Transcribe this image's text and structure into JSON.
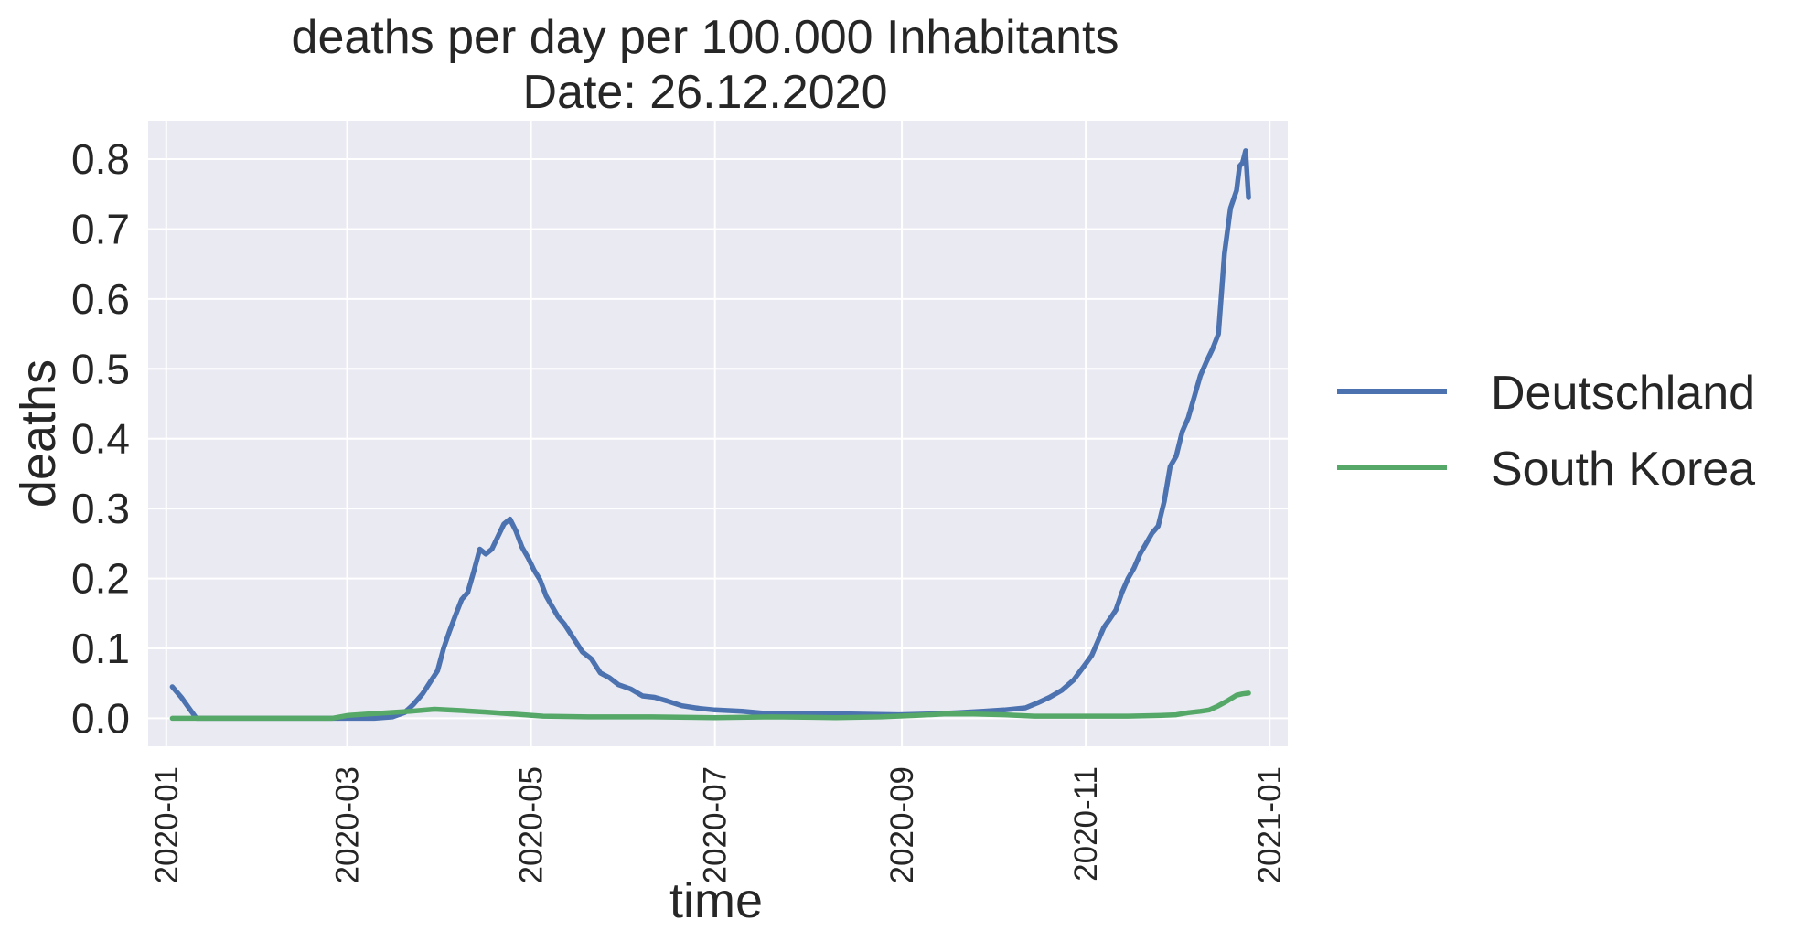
{
  "chart_data": {
    "type": "line",
    "title": "deaths per day per 100.000 Inhabitants",
    "subtitle": "Date: 26.12.2020",
    "xlabel": "time",
    "ylabel": "deaths",
    "ylim": [
      -0.04,
      0.855
    ],
    "xlim": [
      "2019-12-26",
      "2021-01-07"
    ],
    "yticks": [
      0.0,
      0.1,
      0.2,
      0.3,
      0.4,
      0.5,
      0.6,
      0.7,
      0.8
    ],
    "ytick_labels": [
      "0.0",
      "0.1",
      "0.2",
      "0.3",
      "0.4",
      "0.5",
      "0.6",
      "0.7",
      "0.8"
    ],
    "xticks": [
      "2020-01-01",
      "2020-03-01",
      "2020-05-01",
      "2020-07-01",
      "2020-09-01",
      "2020-11-01",
      "2021-01-01"
    ],
    "xtick_labels": [
      "2020-01",
      "2020-03",
      "2020-05",
      "2020-07",
      "2020-09",
      "2020-11",
      "2021-01"
    ],
    "grid": true,
    "legend_position": "right",
    "background": "#EAEAF2",
    "series": [
      {
        "name": "Deutschland",
        "color": "#4C72B0",
        "points": [
          [
            "2020-01-03",
            0.045
          ],
          [
            "2020-01-06",
            0.03
          ],
          [
            "2020-01-09",
            0.012
          ],
          [
            "2020-01-11",
            0.0
          ],
          [
            "2020-02-01",
            0.0
          ],
          [
            "2020-03-01",
            0.0
          ],
          [
            "2020-03-10",
            0.0
          ],
          [
            "2020-03-16",
            0.002
          ],
          [
            "2020-03-20",
            0.008
          ],
          [
            "2020-03-23",
            0.02
          ],
          [
            "2020-03-26",
            0.035
          ],
          [
            "2020-03-29",
            0.055
          ],
          [
            "2020-03-31",
            0.068
          ],
          [
            "2020-04-02",
            0.1
          ],
          [
            "2020-04-04",
            0.125
          ],
          [
            "2020-04-06",
            0.148
          ],
          [
            "2020-04-08",
            0.17
          ],
          [
            "2020-04-10",
            0.18
          ],
          [
            "2020-04-12",
            0.21
          ],
          [
            "2020-04-14",
            0.242
          ],
          [
            "2020-04-16",
            0.235
          ],
          [
            "2020-04-18",
            0.242
          ],
          [
            "2020-04-20",
            0.26
          ],
          [
            "2020-04-22",
            0.278
          ],
          [
            "2020-04-24",
            0.285
          ],
          [
            "2020-04-26",
            0.268
          ],
          [
            "2020-04-28",
            0.245
          ],
          [
            "2020-04-30",
            0.23
          ],
          [
            "2020-05-02",
            0.212
          ],
          [
            "2020-05-04",
            0.198
          ],
          [
            "2020-05-06",
            0.175
          ],
          [
            "2020-05-08",
            0.16
          ],
          [
            "2020-05-10",
            0.145
          ],
          [
            "2020-05-12",
            0.135
          ],
          [
            "2020-05-15",
            0.115
          ],
          [
            "2020-05-18",
            0.095
          ],
          [
            "2020-05-21",
            0.085
          ],
          [
            "2020-05-24",
            0.065
          ],
          [
            "2020-05-27",
            0.058
          ],
          [
            "2020-05-30",
            0.048
          ],
          [
            "2020-06-03",
            0.042
          ],
          [
            "2020-06-07",
            0.032
          ],
          [
            "2020-06-11",
            0.03
          ],
          [
            "2020-06-15",
            0.025
          ],
          [
            "2020-06-20",
            0.018
          ],
          [
            "2020-06-26",
            0.014
          ],
          [
            "2020-07-01",
            0.012
          ],
          [
            "2020-07-10",
            0.01
          ],
          [
            "2020-07-20",
            0.006
          ],
          [
            "2020-08-01",
            0.006
          ],
          [
            "2020-08-15",
            0.006
          ],
          [
            "2020-08-31",
            0.005
          ],
          [
            "2020-09-10",
            0.006
          ],
          [
            "2020-09-20",
            0.008
          ],
          [
            "2020-09-28",
            0.01
          ],
          [
            "2020-10-05",
            0.012
          ],
          [
            "2020-10-12",
            0.015
          ],
          [
            "2020-10-16",
            0.022
          ],
          [
            "2020-10-20",
            0.03
          ],
          [
            "2020-10-24",
            0.04
          ],
          [
            "2020-10-28",
            0.055
          ],
          [
            "2020-11-01",
            0.078
          ],
          [
            "2020-11-03",
            0.09
          ],
          [
            "2020-11-05",
            0.11
          ],
          [
            "2020-11-07",
            0.13
          ],
          [
            "2020-11-09",
            0.142
          ],
          [
            "2020-11-11",
            0.155
          ],
          [
            "2020-11-13",
            0.18
          ],
          [
            "2020-11-15",
            0.2
          ],
          [
            "2020-11-17",
            0.215
          ],
          [
            "2020-11-19",
            0.235
          ],
          [
            "2020-11-21",
            0.25
          ],
          [
            "2020-11-23",
            0.265
          ],
          [
            "2020-11-25",
            0.275
          ],
          [
            "2020-11-27",
            0.31
          ],
          [
            "2020-11-29",
            0.36
          ],
          [
            "2020-12-01",
            0.375
          ],
          [
            "2020-12-03",
            0.41
          ],
          [
            "2020-12-05",
            0.43
          ],
          [
            "2020-12-07",
            0.46
          ],
          [
            "2020-12-09",
            0.49
          ],
          [
            "2020-12-11",
            0.51
          ],
          [
            "2020-12-13",
            0.528
          ],
          [
            "2020-12-15",
            0.55
          ],
          [
            "2020-12-17",
            0.665
          ],
          [
            "2020-12-19",
            0.73
          ],
          [
            "2020-12-21",
            0.755
          ],
          [
            "2020-12-22",
            0.79
          ],
          [
            "2020-12-23",
            0.795
          ],
          [
            "2020-12-24",
            0.812
          ],
          [
            "2020-12-25",
            0.745
          ]
        ]
      },
      {
        "name": "South Korea",
        "color": "#55A868",
        "points": [
          [
            "2020-01-03",
            0.0
          ],
          [
            "2020-02-25",
            0.0
          ],
          [
            "2020-03-01",
            0.004
          ],
          [
            "2020-03-08",
            0.006
          ],
          [
            "2020-03-15",
            0.008
          ],
          [
            "2020-03-22",
            0.01
          ],
          [
            "2020-03-30",
            0.013
          ],
          [
            "2020-04-08",
            0.011
          ],
          [
            "2020-04-16",
            0.009
          ],
          [
            "2020-04-25",
            0.006
          ],
          [
            "2020-05-05",
            0.003
          ],
          [
            "2020-05-20",
            0.002
          ],
          [
            "2020-06-10",
            0.002
          ],
          [
            "2020-07-01",
            0.001
          ],
          [
            "2020-07-20",
            0.002
          ],
          [
            "2020-08-10",
            0.001
          ],
          [
            "2020-08-25",
            0.002
          ],
          [
            "2020-09-05",
            0.004
          ],
          [
            "2020-09-15",
            0.006
          ],
          [
            "2020-09-25",
            0.006
          ],
          [
            "2020-10-05",
            0.005
          ],
          [
            "2020-10-15",
            0.003
          ],
          [
            "2020-10-25",
            0.003
          ],
          [
            "2020-11-05",
            0.003
          ],
          [
            "2020-11-15",
            0.003
          ],
          [
            "2020-11-25",
            0.004
          ],
          [
            "2020-12-01",
            0.005
          ],
          [
            "2020-12-05",
            0.008
          ],
          [
            "2020-12-09",
            0.01
          ],
          [
            "2020-12-12",
            0.012
          ],
          [
            "2020-12-15",
            0.018
          ],
          [
            "2020-12-18",
            0.025
          ],
          [
            "2020-12-21",
            0.033
          ],
          [
            "2020-12-23",
            0.035
          ],
          [
            "2020-12-25",
            0.036
          ]
        ]
      }
    ]
  }
}
